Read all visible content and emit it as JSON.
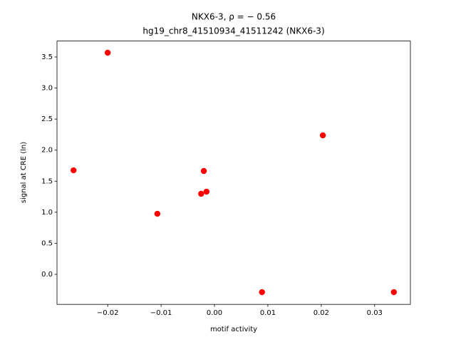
{
  "chart_data": {
    "type": "scatter",
    "title": "NKX6-3, ρ = − 0.56",
    "subtitle": "hg19_chr8_41510934_41511242 (NKX6-3)",
    "x_label": "motif activity",
    "y_label": "signal at CRE (ln)",
    "color": "#ff0000",
    "x": [
      -0.0264,
      -0.02,
      -0.0107,
      -0.0025,
      -0.002,
      -0.0015,
      0.0089,
      0.0203,
      0.0336
    ],
    "values": [
      1.675,
      3.569,
      0.975,
      1.297,
      1.664,
      1.331,
      -0.287,
      2.238,
      -0.287
    ],
    "xlim": [
      -0.0295,
      0.0367
    ],
    "ylim": [
      -0.484,
      3.757
    ],
    "xticks": [
      {
        "value": -0.02,
        "label": "−0.02"
      },
      {
        "value": -0.01,
        "label": "−0.01"
      },
      {
        "value": 0,
        "label": "0.00"
      },
      0.01,
      0.02,
      0.03
    ],
    "yticks": [
      {
        "value": 0,
        "label": "0.0"
      },
      0.5,
      {
        "value": 1,
        "label": "1.0"
      },
      1.5,
      {
        "value": 2,
        "label": "2.0"
      },
      2.5,
      {
        "value": 3,
        "label": "3.0"
      },
      3.5
    ]
  }
}
